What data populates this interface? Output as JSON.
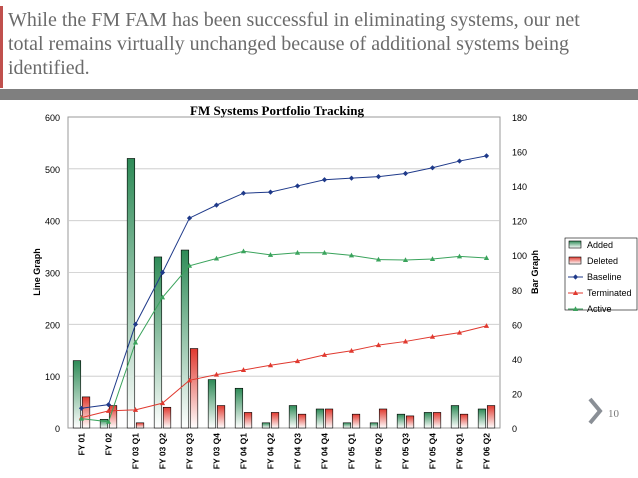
{
  "slide": {
    "title": "While the FM FAM has been successful in eliminating systems, our net total remains virtually unchanged because of additional systems being identified.",
    "page_number": "10",
    "accent_color": "#c0504d"
  },
  "chart_data": {
    "type": "bar+line",
    "title": "FM Systems Portfolio Tracking",
    "ylabel_left": "Line Graph",
    "ylabel_right": "Bar Graph",
    "y_left": {
      "min": 0,
      "max": 600,
      "ticks": [
        0,
        100,
        200,
        300,
        400,
        500,
        600
      ]
    },
    "y_right": {
      "min": 0,
      "max": 180,
      "ticks": [
        0,
        20,
        40,
        60,
        80,
        100,
        120,
        140,
        160,
        180
      ]
    },
    "legend_position": "right",
    "grid": true,
    "categories": [
      "FY 01",
      "FY 02",
      "FY 03 Q1",
      "FY 03 Q2",
      "FY 03 Q3",
      "FY 03 Q4",
      "FY 04 Q1",
      "FY 04 Q2",
      "FY 04 Q3",
      "FY 04 Q4",
      "FY 05 Q1",
      "FY 05 Q2",
      "FY 05 Q3",
      "FY 05 Q4",
      "FY 06 Q1",
      "FY 06 Q2"
    ],
    "bar_series": [
      {
        "name": "Added",
        "axis": "right",
        "color": "#2e8b57",
        "values": [
          39,
          5,
          156,
          99,
          103,
          28,
          23,
          3,
          13,
          11,
          3,
          3,
          8,
          9,
          13,
          11
        ]
      },
      {
        "name": "Deleted",
        "axis": "right",
        "color": "#e0392f",
        "values": [
          18,
          13,
          3,
          12,
          46,
          13,
          9,
          9,
          8,
          11,
          8,
          11,
          7,
          9,
          8,
          13
        ]
      }
    ],
    "line_series": [
      {
        "name": "Baseline",
        "axis": "left",
        "color": "#1f3a8a",
        "marker": "diamond",
        "values": [
          38,
          45,
          200,
          300,
          405,
          430,
          453,
          455,
          467,
          479,
          482,
          485,
          491,
          502,
          515,
          525
        ]
      },
      {
        "name": "Terminated",
        "axis": "left",
        "color": "#e0392f",
        "marker": "triangle",
        "values": [
          20,
          33,
          35,
          48,
          92,
          103,
          112,
          121,
          129,
          141,
          149,
          160,
          167,
          176,
          184,
          197
        ]
      },
      {
        "name": "Active",
        "axis": "left",
        "color": "#3aa35c",
        "marker": "triangle",
        "values": [
          18,
          12,
          165,
          252,
          313,
          327,
          341,
          334,
          338,
          338,
          333,
          325,
          324,
          326,
          331,
          328
        ]
      }
    ]
  }
}
